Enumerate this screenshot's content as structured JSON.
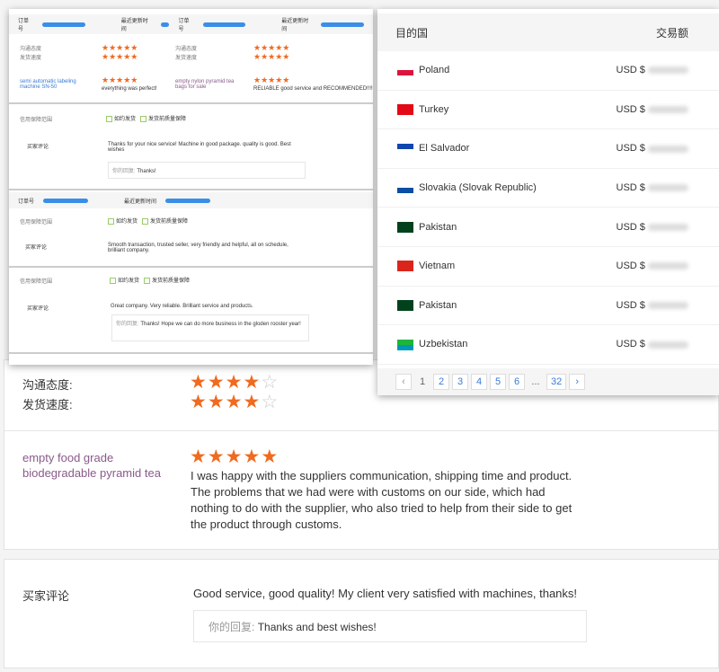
{
  "panel_a": {
    "order_label": "订单号",
    "updated_label": "最近更新时间",
    "comm_label": "沟通态度",
    "ship_label": "发货速度",
    "card1": {
      "product": "semi automatic labeling machine SN-50",
      "comment": "everything was perfect!"
    },
    "card2": {
      "product": "empty nylon pyramid tea bags for sale",
      "comment": "RELIABLE good service and RECOMMENDED!!!!"
    },
    "credit_label": "信用保障范围",
    "check1": "如约发货",
    "check2": "发货前质量保障",
    "buyer_label": "买家评论",
    "reply_label": "你的回复:",
    "review1": {
      "comment": "Thanks for your nice service! Machine in good package. quality is good. Best wishes",
      "reply": "Thanks!"
    },
    "review2": {
      "comment": "Smooth transaction, trusted seller, very friendly and helpful, all on schedule, brilliant company."
    },
    "review3": {
      "comment": "Great company. Very reliable. Brilliant service and products.",
      "reply": "Thanks! Hope we can do more business in the gloden rooster year!"
    }
  },
  "panel_b": {
    "col_country": "目的国",
    "col_amount": "交易额",
    "rows": [
      {
        "country": "Poland",
        "amount": "USD $",
        "flag": [
          "#fff",
          "#dc143c"
        ]
      },
      {
        "country": "Turkey",
        "amount": "USD $",
        "flag": [
          "#e30a17",
          "#e30a17"
        ]
      },
      {
        "country": "El Salvador",
        "amount": "USD $",
        "flag": [
          "#0f47af",
          "#fff"
        ]
      },
      {
        "country": "Slovakia (Slovak Republic)",
        "amount": "USD $",
        "flag": [
          "#fff",
          "#0b4ea2"
        ]
      },
      {
        "country": "Pakistan",
        "amount": "USD $",
        "flag": [
          "#01411c",
          "#01411c"
        ]
      },
      {
        "country": "Vietnam",
        "amount": "USD $",
        "flag": [
          "#da251d",
          "#da251d"
        ]
      },
      {
        "country": "Pakistan",
        "amount": "USD $",
        "flag": [
          "#01411c",
          "#01411c"
        ]
      },
      {
        "country": "Uzbekistan",
        "amount": "USD $",
        "flag": [
          "#1eb53a",
          "#0099b5"
        ]
      }
    ],
    "pages": [
      "1",
      "2",
      "3",
      "4",
      "5",
      "6",
      "...",
      "32"
    ],
    "current_page": "1"
  },
  "ratings": {
    "comm_label": "沟通态度:",
    "ship_label": "发货速度:",
    "comm_stars": 4,
    "ship_stars": 4
  },
  "review": {
    "product": "empty food grade biodegradable pyramid tea",
    "stars": 5,
    "comment": "I was happy with the suppliers communication, shipping time and product. The problems that we had were with customs on our side, which had nothing to do with the supplier, who also tried to help from their side to get the product through customs."
  },
  "buyer_review": {
    "label": "买家评论",
    "comment": "Good service, good quality! My client very satisfied with machines, thanks!",
    "reply_label": "你的回复:",
    "reply": "Thanks and best wishes!"
  },
  "colors": {
    "star": "#f06a1f",
    "link": "#3a7bd5",
    "product": "#8a5a8a"
  }
}
